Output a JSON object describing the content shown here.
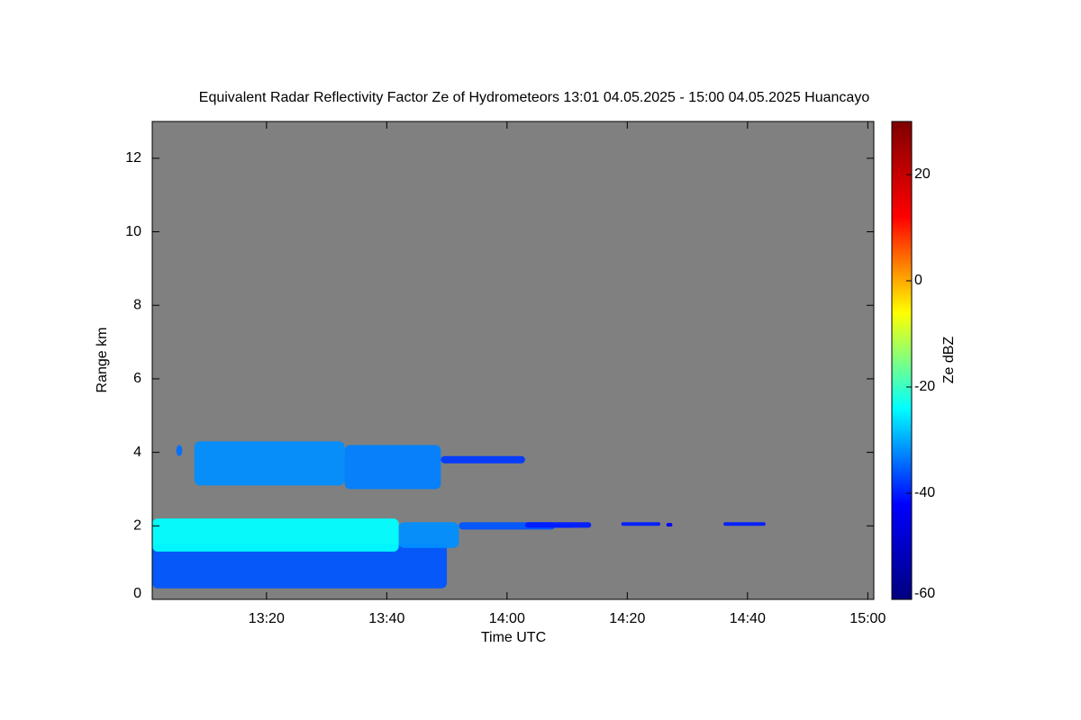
{
  "chart_data": {
    "type": "time-height",
    "title": "Equivalent Radar Reflectivity Factor Ze of Hydrometeors   13:01 04.05.2025 - 15:00 04.05.2025 Huancayo",
    "xlabel": "Time UTC",
    "ylabel": "Range km",
    "xlim": [
      781,
      901
    ],
    "xticks": [
      {
        "value": 800,
        "label": "13:20"
      },
      {
        "value": 820,
        "label": "13:40"
      },
      {
        "value": 840,
        "label": "14:00"
      },
      {
        "value": 860,
        "label": "14:20"
      },
      {
        "value": 880,
        "label": "14:40"
      },
      {
        "value": 900,
        "label": "15:00"
      }
    ],
    "ylim": [
      0,
      13
    ],
    "yticks": [
      0,
      2,
      4,
      6,
      8,
      10,
      12
    ],
    "background": "#808080",
    "colorbar": {
      "label": "Ze dBZ",
      "lim": [
        -60,
        30
      ],
      "ticks": [
        -60,
        -40,
        -20,
        0,
        20
      ],
      "colors": [
        "#00007f",
        "#0000ff",
        "#00ffff",
        "#ffff00",
        "#ff0000",
        "#7f0000"
      ]
    },
    "echoes": [
      {
        "time": [
          781,
          830
        ],
        "range": [
          0.3,
          1.5
        ],
        "ze": -36
      },
      {
        "time": [
          781,
          822
        ],
        "range": [
          1.3,
          2.2
        ],
        "ze": -24
      },
      {
        "time": [
          822,
          832
        ],
        "range": [
          1.4,
          2.1
        ],
        "ze": -32
      },
      {
        "time": [
          832,
          848
        ],
        "range": [
          1.9,
          2.1
        ],
        "ze": -36
      },
      {
        "time": [
          848,
          851
        ],
        "range": [
          1.95,
          2.05
        ],
        "ze": -38
      },
      {
        "time": [
          843,
          854
        ],
        "range": [
          1.95,
          2.1
        ],
        "ze": -40
      },
      {
        "time": [
          859,
          865.5
        ],
        "range": [
          2.0,
          2.1
        ],
        "ze": -40
      },
      {
        "time": [
          866.5,
          867.5
        ],
        "range": [
          1.98,
          2.08
        ],
        "ze": -42
      },
      {
        "time": [
          876,
          883
        ],
        "range": [
          2.0,
          2.1
        ],
        "ze": -40
      },
      {
        "time": [
          785,
          786
        ],
        "range": [
          3.9,
          4.2
        ],
        "ze": -34
      },
      {
        "time": [
          788,
          813
        ],
        "range": [
          3.1,
          4.3
        ],
        "ze": -32
      },
      {
        "time": [
          813,
          829
        ],
        "range": [
          3.0,
          4.2
        ],
        "ze": -33
      },
      {
        "time": [
          829,
          843
        ],
        "range": [
          3.7,
          3.9
        ],
        "ze": -38
      }
    ]
  }
}
